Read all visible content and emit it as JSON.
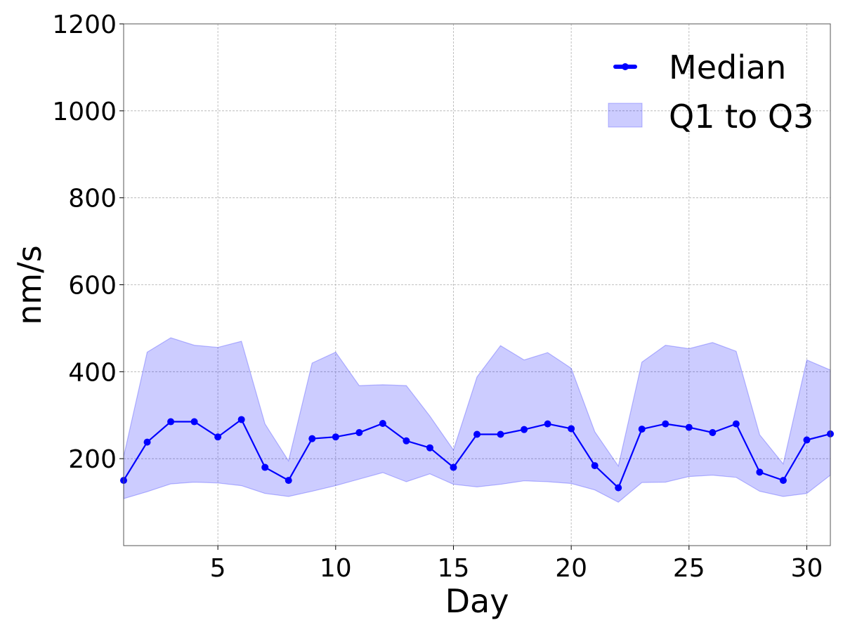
{
  "chart_data": {
    "type": "line",
    "xlabel": "Day",
    "ylabel": "nm/s",
    "xlim": [
      1,
      31
    ],
    "ylim": [
      0,
      1200
    ],
    "xticks": [
      5,
      10,
      15,
      20,
      25,
      30
    ],
    "yticks": [
      200,
      400,
      600,
      800,
      1000,
      1200
    ],
    "grid": true,
    "legend_placement": "top-right",
    "x": [
      1,
      2,
      3,
      4,
      5,
      6,
      7,
      8,
      9,
      10,
      11,
      12,
      13,
      14,
      15,
      16,
      17,
      18,
      19,
      20,
      21,
      22,
      23,
      24,
      25,
      26,
      27,
      28,
      29,
      30,
      31
    ],
    "series": [
      {
        "name": "Median",
        "kind": "line-with-markers",
        "color": "#0000ff",
        "values": [
          150,
          238,
          285,
          285,
          250,
          290,
          180,
          150,
          246,
          250,
          260,
          281,
          241,
          225,
          180,
          256,
          256,
          267,
          280,
          269,
          184,
          133,
          268,
          280,
          272,
          260,
          280,
          169,
          150,
          243,
          257
        ]
      },
      {
        "name": "Q1 to Q3",
        "kind": "band",
        "color": "#0000ff",
        "lower": [
          108,
          124,
          142,
          146,
          144,
          138,
          120,
          113,
          125,
          138,
          153,
          168,
          147,
          165,
          141,
          135,
          141,
          149,
          147,
          143,
          128,
          100,
          145,
          146,
          159,
          162,
          157,
          125,
          113,
          120,
          162
        ],
        "upper": [
          205,
          445,
          478,
          461,
          456,
          470,
          280,
          195,
          420,
          445,
          368,
          370,
          368,
          298,
          220,
          388,
          460,
          427,
          444,
          408,
          262,
          183,
          422,
          461,
          453,
          467,
          447,
          255,
          188,
          427,
          404
        ]
      }
    ]
  }
}
